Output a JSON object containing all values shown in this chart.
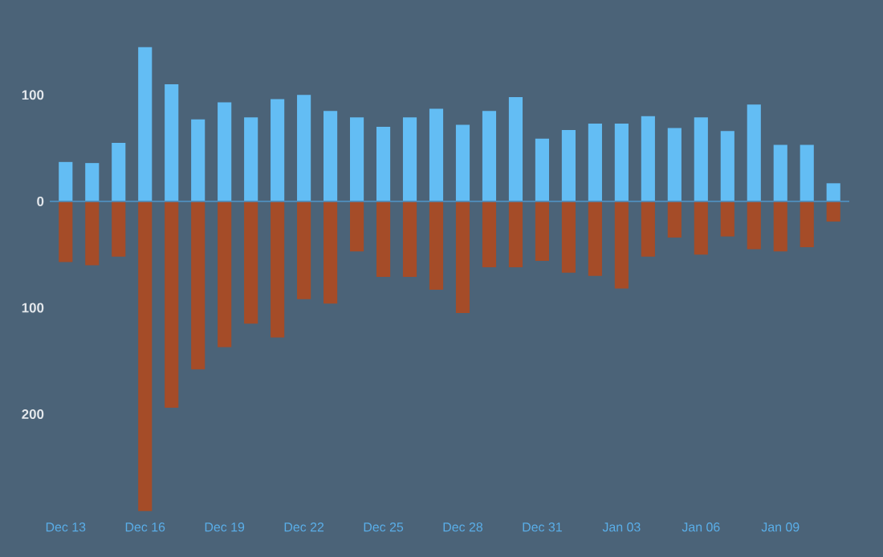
{
  "chart_data": {
    "type": "bar",
    "categories": [
      "Dec 13",
      null,
      null,
      "Dec 16",
      null,
      null,
      "Dec 19",
      null,
      null,
      "Dec 22",
      null,
      null,
      "Dec 25",
      null,
      null,
      "Dec 28",
      null,
      null,
      "Dec 31",
      null,
      null,
      "Jan 03",
      null,
      null,
      "Jan 06",
      null,
      null,
      "Jan 09",
      null,
      null
    ],
    "series": [
      {
        "color": "#63bdf4",
        "values": [
          37,
          36,
          55,
          145,
          110,
          77,
          93,
          79,
          96,
          100,
          85,
          79,
          70,
          79,
          87,
          72,
          85,
          98,
          59,
          67,
          73,
          73,
          80,
          69,
          79,
          66,
          91,
          53,
          53,
          17
        ]
      },
      {
        "color": "#a54c28",
        "values": [
          -57,
          -60,
          -52,
          -291,
          -194,
          -158,
          -137,
          -115,
          -128,
          -92,
          -96,
          -47,
          -71,
          -71,
          -83,
          -105,
          -62,
          -62,
          -56,
          -67,
          -70,
          -82,
          -52,
          -34,
          -50,
          -33,
          -45,
          -47,
          -43,
          -19
        ]
      }
    ],
    "ylim": [
      -295,
      150
    ],
    "yticks": [
      {
        "value": -200,
        "label": "200"
      },
      {
        "value": -100,
        "label": "100"
      },
      0,
      100
    ],
    "stacked": true,
    "ref_lines": [
      {
        "axis": "y",
        "value": 0,
        "color": "#4f8fbf"
      }
    ]
  }
}
